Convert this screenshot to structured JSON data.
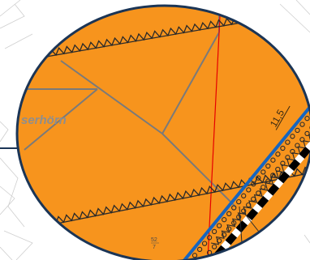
{
  "map": {
    "place_label": "serhörn",
    "value_label": "11,5",
    "parcel_number": "52\n7",
    "colors": {
      "fill": "#f7941d",
      "border": "#1b3556",
      "boundary_line": "#7a7a7a",
      "red_line": "#e60000",
      "blue_line": "#1565c0",
      "zigzag_line": "#2a2a2a",
      "base_map_lines": "#c8c8c8",
      "background": "#ffffff"
    },
    "icons": {
      "leader": "connector-line",
      "embankment": "embankment-hatching",
      "rail": "railway-track"
    }
  }
}
